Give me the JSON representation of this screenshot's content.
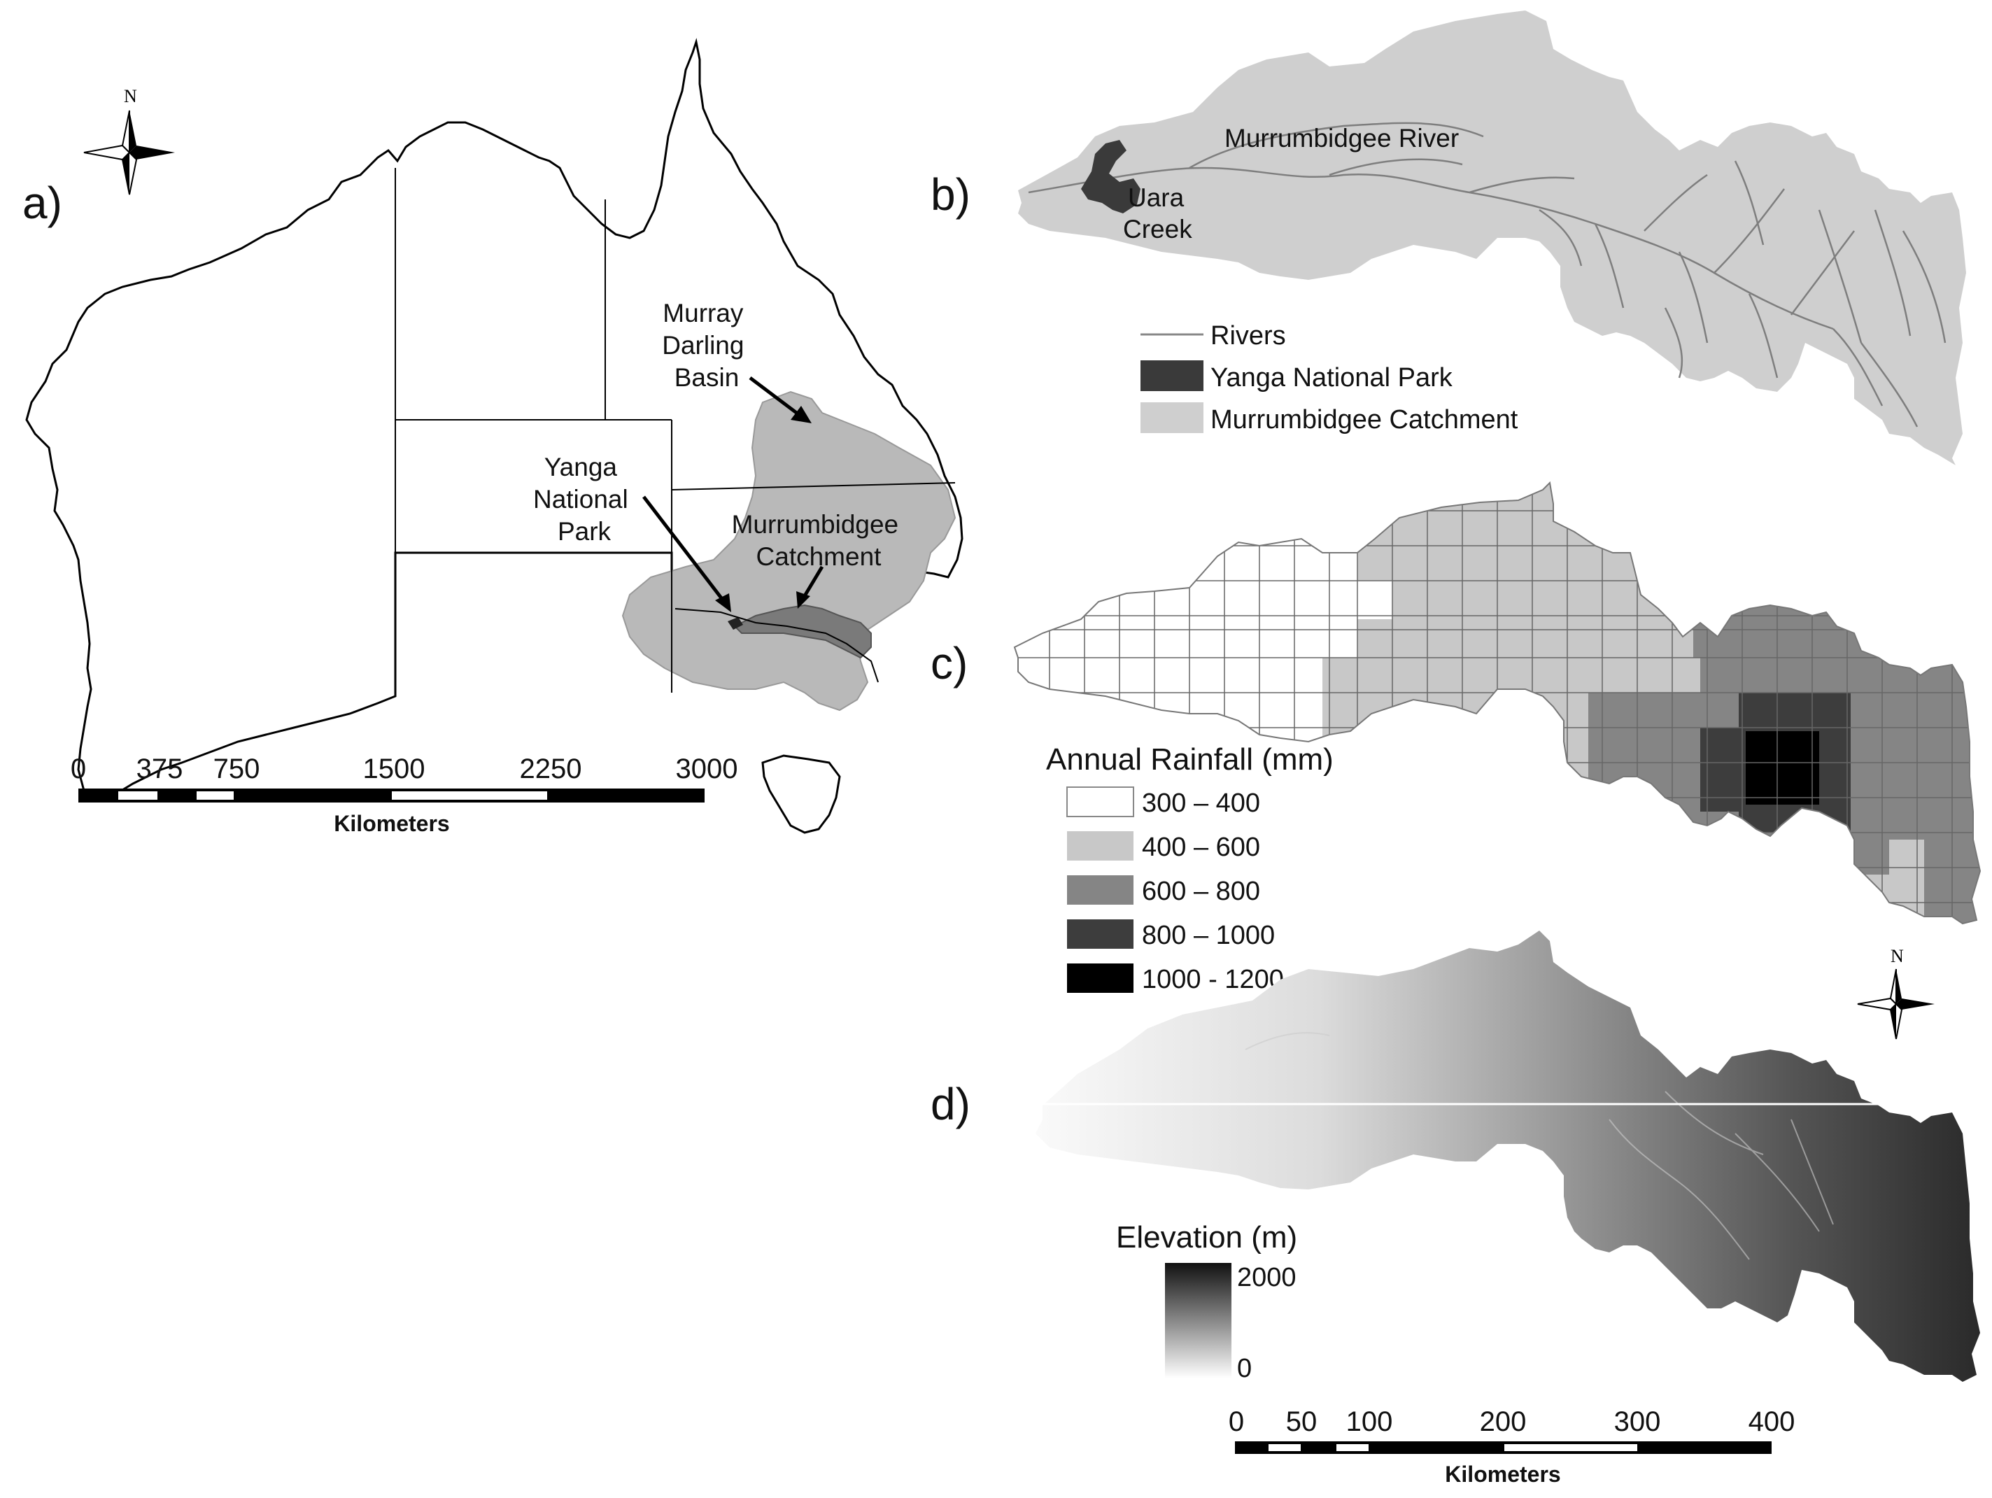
{
  "panel_a": {
    "letter": "a)",
    "north": "N",
    "labels": {
      "murray_darling": [
        "Murray",
        "Darling",
        "Basin"
      ],
      "yanga": [
        "Yanga",
        "National",
        "Park"
      ],
      "murrumbidgee": [
        "Murrumbidgee",
        "Catchment"
      ]
    },
    "scale": {
      "ticks": [
        "0",
        "375",
        "750",
        "1500",
        "2250",
        "3000"
      ],
      "unit": "Kilometers"
    }
  },
  "panel_b": {
    "letter": "b)",
    "labels": {
      "river": "Murrumbidgee River",
      "creek": [
        "Uara",
        "Creek"
      ]
    },
    "legend": [
      {
        "label": "Rivers",
        "symbol": "line",
        "color": "#888888"
      },
      {
        "label": "Yanga National Park",
        "symbol": "fill",
        "color": "#3a3a3a"
      },
      {
        "label": "Murrumbidgee Catchment",
        "symbol": "fill",
        "color": "#cfcfcf"
      }
    ]
  },
  "panel_c": {
    "letter": "c)",
    "legend_title": "Annual Rainfall (mm)",
    "classes": [
      {
        "label": "300 – 400",
        "color": "#ffffff"
      },
      {
        "label": "400 – 600",
        "color": "#c8c8c8"
      },
      {
        "label": "600 – 800",
        "color": "#858585"
      },
      {
        "label": "800 – 1000",
        "color": "#3d3d3d"
      },
      {
        "label": "1000 - 1200",
        "color": "#000000"
      }
    ]
  },
  "panel_d": {
    "letter": "d)",
    "north": "N",
    "legend_title": "Elevation (m)",
    "legend_max": "2000",
    "legend_min": "0",
    "scale": {
      "ticks": [
        "0",
        "50",
        "100",
        "200",
        "300",
        "400"
      ],
      "unit": "Kilometers"
    }
  },
  "colors": {
    "basin": "#b9b9b9",
    "catchment_a": "#7a7a7a",
    "catchment_b": "#cfcfcf",
    "park": "#3a3a3a"
  }
}
